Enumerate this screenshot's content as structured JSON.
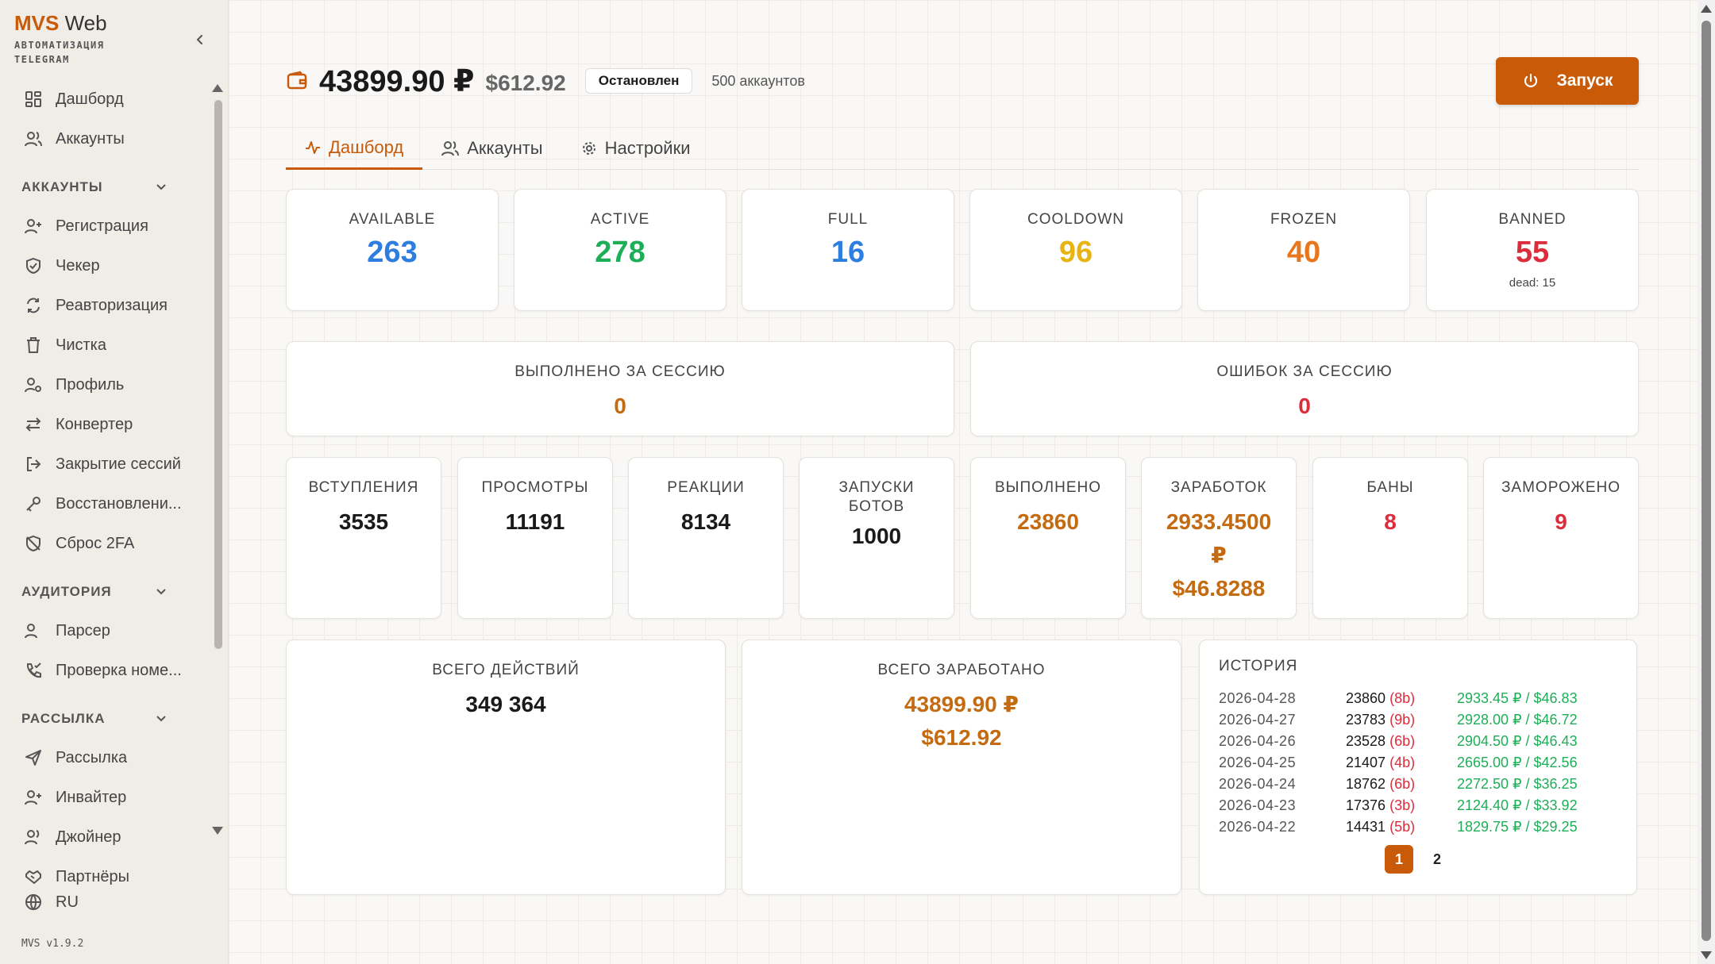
{
  "app": {
    "brand_mvs": "MVS",
    "brand_web": " Web",
    "brand_sub_1": "АВТОМАТИЗАЦИЯ",
    "brand_sub_2": "TELEGRAM",
    "version": "MVS v1.9.2",
    "language": "RU"
  },
  "sidebar": {
    "top_items": [
      {
        "label": "Дашборд",
        "icon": "dashboard-icon"
      },
      {
        "label": "Аккаунты",
        "icon": "users-icon"
      }
    ],
    "sections": [
      {
        "title": "АККАУНТЫ",
        "items": [
          {
            "label": "Регистрация",
            "icon": "user-plus-icon"
          },
          {
            "label": "Чекер",
            "icon": "shield-check-icon"
          },
          {
            "label": "Реавторизация",
            "icon": "refresh-icon"
          },
          {
            "label": "Чистка",
            "icon": "trash-icon"
          },
          {
            "label": "Профиль",
            "icon": "user-cog-icon"
          },
          {
            "label": "Конвертер",
            "icon": "arrows-swap-icon"
          },
          {
            "label": "Закрытие сессий",
            "icon": "logout-icon"
          },
          {
            "label": "Восстановлени...",
            "icon": "key-icon"
          },
          {
            "label": "Сброс 2FA",
            "icon": "shield-off-icon"
          }
        ]
      },
      {
        "title": "АУДИТОРИЯ",
        "items": [
          {
            "label": "Парсер",
            "icon": "users-icon"
          },
          {
            "label": "Проверка номе...",
            "icon": "phone-check-icon"
          }
        ]
      },
      {
        "title": "РАССЫЛКА",
        "items": [
          {
            "label": "Рассылка",
            "icon": "send-icon"
          },
          {
            "label": "Инвайтер",
            "icon": "user-plus-icon"
          },
          {
            "label": "Джойнер",
            "icon": "users-icon"
          },
          {
            "label": "Партнёры",
            "icon": "handshake-icon"
          }
        ]
      }
    ]
  },
  "header": {
    "balance": "43899.90 ₽",
    "balance_usd": "$612.92",
    "status": "Остановлен",
    "accounts_count": "500 аккаунтов",
    "start_label": "Запуск"
  },
  "tabs": [
    {
      "label": "Дашборд",
      "icon": "activity-icon"
    },
    {
      "label": "Аккаунты",
      "icon": "users-icon"
    },
    {
      "label": "Настройки",
      "icon": "gear-icon"
    }
  ],
  "status_cards": [
    {
      "label": "AVAILABLE",
      "value": "263",
      "color": "#2e7ee0"
    },
    {
      "label": "ACTIVE",
      "value": "278",
      "color": "#1fae58"
    },
    {
      "label": "FULL",
      "value": "16",
      "color": "#2e7ee0"
    },
    {
      "label": "COOLDOWN",
      "value": "96",
      "color": "#e8b414"
    },
    {
      "label": "FROZEN",
      "value": "40",
      "color": "#e8761c"
    },
    {
      "label": "BANNED",
      "value": "55",
      "color": "#dc2d3c",
      "sub": "dead: 15"
    }
  ],
  "session": {
    "done_label": "ВЫПОЛНЕНО ЗА СЕССИЮ",
    "done_value": "0",
    "errors_label": "ОШИБОК ЗА СЕССИЮ",
    "errors_value": "0"
  },
  "stats": [
    {
      "label": "ВСТУПЛЕНИЯ",
      "value": "3535"
    },
    {
      "label": "ПРОСМОТРЫ",
      "value": "11191"
    },
    {
      "label": "РЕАКЦИИ",
      "value": "8134"
    },
    {
      "label": "ЗАПУСКИ",
      "label2": "БОТОВ",
      "value": "1000"
    },
    {
      "label": "ВЫПОЛНЕНО",
      "value": "23860"
    },
    {
      "label": "ЗАРАБОТОК",
      "value_line1": "2933.4500",
      "value_line2": "₽",
      "value_line3": "$46.8288"
    },
    {
      "label": "БАНЫ",
      "value": "8"
    },
    {
      "label": "ЗАМОРОЖЕНО",
      "value": "9"
    }
  ],
  "totals": {
    "actions_label": "ВСЕГО ДЕЙСТВИЙ",
    "actions_value": "349 364",
    "earned_label": "ВСЕГО ЗАРАБОТАНО",
    "earned_rub": "43899.90 ₽",
    "earned_usd": "$612.92"
  },
  "history": {
    "title": "ИСТОРИЯ",
    "rows": [
      {
        "date": "2026-04-28",
        "count": "23860",
        "bans": "(8b)",
        "earned": "2933.45 ₽ / $46.83"
      },
      {
        "date": "2026-04-27",
        "count": "23783",
        "bans": "(9b)",
        "earned": "2928.00 ₽ / $46.72"
      },
      {
        "date": "2026-04-26",
        "count": "23528",
        "bans": "(6b)",
        "earned": "2904.50 ₽ / $46.43"
      },
      {
        "date": "2026-04-25",
        "count": "21407",
        "bans": "(4b)",
        "earned": "2665.00 ₽ / $42.56"
      },
      {
        "date": "2026-04-24",
        "count": "18762",
        "bans": "(6b)",
        "earned": "2272.50 ₽ / $36.25"
      },
      {
        "date": "2026-04-23",
        "count": "17376",
        "bans": "(3b)",
        "earned": "2124.40 ₽ / $33.92"
      },
      {
        "date": "2026-04-22",
        "count": "14431",
        "bans": "(5b)",
        "earned": "1829.75 ₽ / $29.25"
      }
    ],
    "pages": [
      "1",
      "2"
    ],
    "current_page": "1"
  }
}
